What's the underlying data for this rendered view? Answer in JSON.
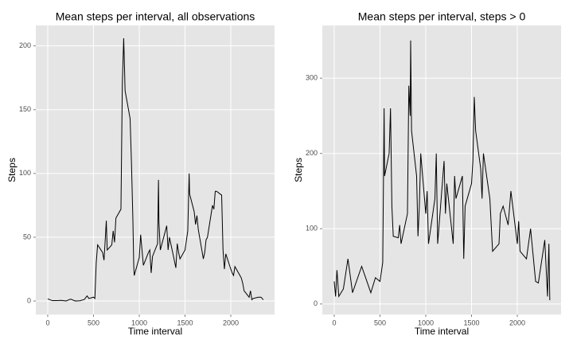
{
  "chart_data": [
    {
      "type": "line",
      "title": "Mean steps per interval, all observations",
      "x_label": "Time interval",
      "y_label": "Steps",
      "xlim": [
        -130,
        2478
      ],
      "ylim": [
        -10.6,
        216
      ],
      "xticks": [
        0,
        500,
        1000,
        1500,
        2000
      ],
      "yticks": [
        0,
        50,
        100,
        150,
        200
      ],
      "grid": true,
      "series": [
        {
          "name": "Steps",
          "color": "#000000",
          "x": [
            0,
            50,
            100,
            150,
            200,
            250,
            300,
            350,
            400,
            430,
            450,
            500,
            515,
            530,
            545,
            600,
            615,
            630,
            640,
            650,
            700,
            715,
            730,
            745,
            800,
            815,
            830,
            840,
            845,
            900,
            915,
            930,
            940,
            945,
            1000,
            1015,
            1030,
            1045,
            1100,
            1115,
            1130,
            1145,
            1200,
            1210,
            1215,
            1230,
            1300,
            1315,
            1330,
            1400,
            1415,
            1430,
            1445,
            1500,
            1530,
            1545,
            1550,
            1600,
            1615,
            1630,
            1645,
            1700,
            1715,
            1730,
            1745,
            1800,
            1815,
            1830,
            1845,
            1900,
            1915,
            1930,
            1945,
            2000,
            2015,
            2030,
            2045,
            2100,
            2115,
            2130,
            2145,
            2200,
            2215,
            2230,
            2245,
            2300,
            2330,
            2355
          ],
          "values": [
            1.7,
            0.3,
            0.3,
            0.5,
            0,
            1.5,
            0,
            0.2,
            1.2,
            4,
            2,
            3,
            2,
            30,
            44,
            38,
            32,
            50,
            63,
            40,
            44,
            55,
            46,
            65,
            72,
            170,
            206,
            180,
            165,
            143,
            108,
            65,
            27,
            20,
            34,
            52,
            40,
            28,
            38,
            40,
            22,
            35,
            45,
            95,
            62,
            40,
            59,
            40,
            50,
            26,
            45,
            38,
            33,
            40,
            55,
            100,
            84,
            70,
            60,
            67,
            56,
            33,
            38,
            48,
            50,
            75,
            72,
            86,
            86,
            83,
            40,
            25,
            37,
            25,
            22,
            20,
            27,
            20,
            18,
            14,
            8,
            3,
            8,
            1,
            2,
            3,
            3,
            1
          ]
        }
      ]
    },
    {
      "type": "line",
      "title": "Mean steps per interval, steps > 0",
      "x_label": "Time interval",
      "y_label": "Steps",
      "xlim": [
        -130,
        2478
      ],
      "ylim": [
        -14,
        370
      ],
      "xticks": [
        0,
        500,
        1000,
        1500,
        2000
      ],
      "yticks": [
        0,
        100,
        200,
        300
      ],
      "grid": true,
      "series": [
        {
          "name": "Steps",
          "color": "#000000",
          "x": [
            0,
            15,
            30,
            50,
            100,
            150,
            200,
            300,
            400,
            450,
            500,
            530,
            545,
            550,
            600,
            615,
            630,
            645,
            700,
            715,
            730,
            800,
            815,
            830,
            835,
            845,
            900,
            915,
            930,
            945,
            1000,
            1015,
            1030,
            1100,
            1115,
            1130,
            1200,
            1215,
            1230,
            1300,
            1315,
            1330,
            1400,
            1415,
            1430,
            1500,
            1515,
            1530,
            1545,
            1600,
            1615,
            1630,
            1700,
            1730,
            1800,
            1815,
            1845,
            1900,
            1930,
            2000,
            2015,
            2030,
            2100,
            2145,
            2200,
            2230,
            2300,
            2330,
            2345,
            2355
          ],
          "values": [
            30,
            10,
            45,
            10,
            20,
            60,
            15,
            50,
            15,
            35,
            30,
            55,
            260,
            170,
            200,
            260,
            130,
            90,
            88,
            105,
            80,
            120,
            290,
            250,
            350,
            230,
            170,
            90,
            130,
            200,
            120,
            150,
            80,
            140,
            200,
            80,
            190,
            120,
            160,
            80,
            170,
            140,
            170,
            60,
            130,
            160,
            190,
            275,
            230,
            180,
            140,
            200,
            140,
            70,
            80,
            120,
            130,
            105,
            150,
            80,
            110,
            70,
            60,
            100,
            30,
            28,
            85,
            10,
            80,
            5
          ]
        }
      ]
    }
  ]
}
